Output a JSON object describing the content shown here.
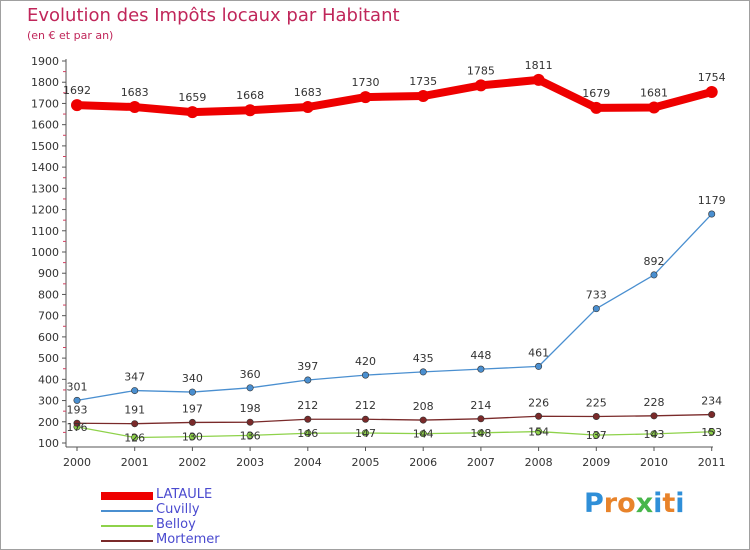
{
  "title": "Evolution des Impôts locaux par Habitant",
  "subtitle": "(en € et par an)",
  "logo": {
    "text": "Proxiti",
    "colors": [
      "#2f8fd8",
      "#e8832a",
      "#e8832a",
      "#47b64a",
      "#2f8fd8",
      "#e8832a",
      "#2f8fd8"
    ]
  },
  "chart_data": {
    "type": "line",
    "title": "Evolution des Impôts locaux par Habitant",
    "subtitle": "(en € et par an)",
    "xlabel": "",
    "ylabel": "",
    "x": [
      "2000",
      "2001",
      "2002",
      "2003",
      "2004",
      "2005",
      "2006",
      "2007",
      "2008",
      "2009",
      "2010",
      "2011"
    ],
    "ylim": [
      100,
      1900
    ],
    "yticks": [
      100,
      200,
      300,
      400,
      500,
      600,
      700,
      800,
      900,
      1000,
      1100,
      1200,
      1300,
      1400,
      1500,
      1600,
      1700,
      1800,
      1900
    ],
    "grid": false,
    "legend_position": "bottom-left",
    "series": [
      {
        "name": "LATAULE",
        "color": "#ee0000",
        "values": [
          1692,
          1683,
          1659,
          1668,
          1683,
          1730,
          1735,
          1785,
          1811,
          1679,
          1681,
          1754
        ],
        "labels": [
          "1692",
          "1683",
          "1659",
          "1668",
          "1683",
          "1730",
          "1735",
          "1785",
          "1811",
          "1679",
          "1681",
          "1754"
        ]
      },
      {
        "name": "Cuvilly",
        "color": "#4a8fd0",
        "values": [
          301,
          347,
          340,
          360,
          397,
          420,
          435,
          448,
          461,
          733,
          892,
          1179
        ],
        "labels": [
          "301",
          "347",
          "340",
          "360",
          "397",
          "420",
          "435",
          "448",
          "461",
          "733",
          "892",
          "1179"
        ]
      },
      {
        "name": "Belloy",
        "color": "#8ed24a",
        "values": [
          176,
          126,
          130,
          136,
          146,
          147,
          144,
          148,
          154,
          137,
          143,
          153
        ],
        "labels": [
          "176",
          "126",
          "130",
          "136",
          "146",
          "147",
          "144",
          "148",
          "154",
          "137",
          "143",
          "153"
        ]
      },
      {
        "name": "Mortemer",
        "color": "#7a2a2a",
        "values": [
          193,
          191,
          197,
          198,
          212,
          212,
          208,
          214,
          226,
          225,
          228,
          234
        ],
        "labels": [
          "193",
          "191",
          "197",
          "198",
          "212",
          "212",
          "208",
          "214",
          "226",
          "225",
          "228",
          "234"
        ]
      }
    ]
  }
}
